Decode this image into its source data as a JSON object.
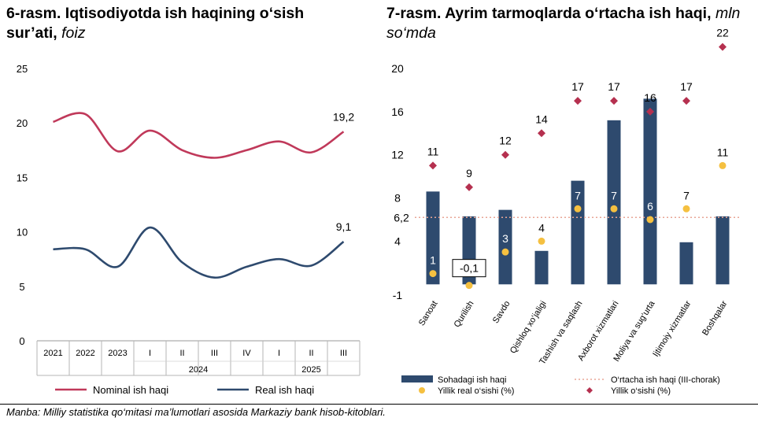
{
  "chart_data": [
    {
      "type": "line",
      "title": "6-rasm. Iqtisodiyotda ish haqining o‘sish sur’ati,",
      "unit": "foiz",
      "categories": [
        "2021",
        "2022",
        "2023",
        "I",
        "II",
        "III",
        "IV",
        "I",
        "II",
        "III"
      ],
      "groups": [
        {
          "label": "2024",
          "from": 3,
          "to": 6
        },
        {
          "label": "2025",
          "from": 7,
          "to": 9
        }
      ],
      "ylim": [
        0,
        25
      ],
      "yticks": [
        "0",
        "5",
        "10",
        "15",
        "20",
        "25"
      ],
      "series": [
        {
          "name": "Nominal ish haqi",
          "color": "#c0395a",
          "values": [
            20.1,
            20.8,
            17.4,
            19.3,
            17.5,
            16.8,
            17.5,
            18.3,
            17.3,
            19.2
          ],
          "end_label": "19,2"
        },
        {
          "name": "Real ish haqi",
          "color": "#2e4a6e",
          "values": [
            8.4,
            8.4,
            6.8,
            10.4,
            7.2,
            5.8,
            6.8,
            7.5,
            6.9,
            9.1
          ],
          "end_label": "9,1"
        }
      ],
      "legend_position": "bottom"
    },
    {
      "type": "bar",
      "title": "7-rasm. Ayrim tarmoqlarda o‘rtacha ish haqi,",
      "unit": "mln so‘mda",
      "categories": [
        "Sanoat",
        "Qurilish",
        "Savdo",
        "Qishloq xo‘jaligi",
        "Tashish va saqlash",
        "Axborot xizmatlari",
        "Moliya va sug‘urta",
        "Ijtimoiy xizmatlar",
        "Boshqalar"
      ],
      "ylim": [
        -1,
        20
      ],
      "yticks": [
        "-1",
        "4",
        "8",
        "12",
        "16",
        "20"
      ],
      "average_value": 6.2,
      "average_label": "6,2",
      "series": [
        {
          "name": "Sohadagi ish haqi",
          "color": "#2e4a6e",
          "values": [
            8.6,
            6.3,
            6.9,
            3.1,
            9.6,
            15.2,
            17.2,
            3.9,
            6.3
          ]
        },
        {
          "name": "Yillik real o‘sishi (%)",
          "color": "#f5c040",
          "values": [
            1,
            -0.1,
            3,
            4,
            7,
            7,
            6,
            7,
            11
          ],
          "labels": [
            "1",
            "-0,1",
            "3",
            "4",
            "7",
            "7",
            "6",
            "7",
            "11"
          ]
        },
        {
          "name": "Yillik o‘sishi (%)",
          "color": "#b5304f",
          "values": [
            11,
            9,
            12,
            14,
            17,
            17,
            16,
            17,
            22
          ],
          "labels": [
            "11",
            "9",
            "12",
            "14",
            "17",
            "17",
            "16",
            "17",
            "22"
          ]
        }
      ],
      "average_series_name": "O‘rtacha ish haqi (III-chorak)",
      "legend_position": "bottom"
    }
  ],
  "source": "Manba: Milliy statistika qo‘mitasi ma’lumotlari asosida Markaziy bank hisob-kitoblari."
}
